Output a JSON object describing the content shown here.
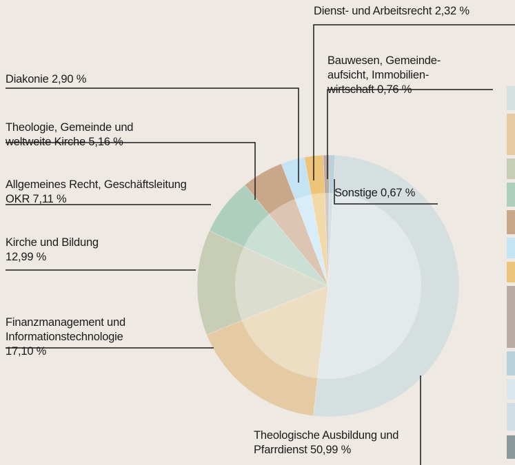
{
  "chart_data": {
    "type": "pie",
    "categories": [
      "Theologische Ausbildung und Pfarrdienst",
      "Finanzmanagement und Informationstechnologie",
      "Kirche und Bildung",
      "Allgemeines Recht, Geschäftsleitung OKR",
      "Theologie, Gemeinde und weltweite Kirche",
      "Diakonie",
      "Dienst- und Arbeitsrecht",
      "Bauwesen, Gemeinde­aufsicht, Immobilien­wirtschaft",
      "Sonstige"
    ],
    "values": [
      50.99,
      17.1,
      12.99,
      7.11,
      5.16,
      2.9,
      2.32,
      0.76,
      0.67
    ],
    "value_labels": [
      "50,99 %",
      "17,10 %",
      "12,99 %",
      "7,11 %",
      "5,16 %",
      "2,90 %",
      "2,32 %",
      "0,76 %",
      "0,67 %"
    ],
    "colors": [
      "#d6dfe0",
      "#e4cba4",
      "#c8cdb6",
      "#afcfbe",
      "#c9a78b",
      "#c4e3f4",
      "#ecc57a",
      "#bcaca6",
      "#b8d1dd"
    ]
  }
}
